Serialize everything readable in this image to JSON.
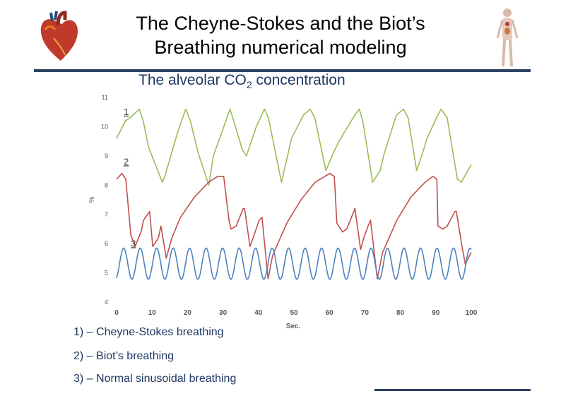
{
  "slide": {
    "title_line1": "The Cheyne-Stokes and the Biot’s",
    "title_line2": "Breathing numerical modeling",
    "subtitle_prefix": "The alveolar CO",
    "subtitle_sub": "2",
    "subtitle_suffix": " concentration",
    "legend": [
      "1) – Cheyne-Stokes breathing",
      "2) – Biot’s breathing",
      "3) – Normal sinusoidal breathing"
    ]
  },
  "icons": {
    "left": "heart-icon",
    "right": "human-anatomy-icon"
  },
  "chart_data": {
    "type": "line",
    "xlabel": "Sec.",
    "ylabel": "%",
    "xlim": [
      0,
      100
    ],
    "ylim": [
      4,
      11
    ],
    "xticks": [
      0,
      10,
      20,
      30,
      40,
      50,
      60,
      70,
      80,
      90,
      100
    ],
    "yticks": [
      4,
      5,
      6,
      7,
      8,
      9,
      10,
      11
    ],
    "grid": false,
    "curve_labels": [
      {
        "text": "1",
        "x": 2,
        "y": 10.4,
        "color": "#7a9a3e"
      },
      {
        "text": "2",
        "x": 2,
        "y": 8.7,
        "color": "#7a9a3e"
      },
      {
        "text": "3",
        "x": 4,
        "y": 5.9,
        "color": "#4a4a4a"
      }
    ],
    "series": [
      {
        "color": "#9bbb59",
        "x": [
          0,
          2.5,
          3.8,
          6.4,
          7.5,
          9,
          12.9,
          13.6,
          17.2,
          19.5,
          20.8,
          23,
          26,
          27.3,
          32,
          33,
          35.5,
          36.6,
          39.4,
          41.7,
          42.8,
          46.5,
          48.2,
          49.3,
          52.7,
          54.6,
          55.9,
          59,
          61.5,
          62.7,
          67.2,
          68.4,
          69.4,
          72.2,
          74.3,
          75.5,
          78.9,
          80.9,
          82.2,
          84.6,
          86.3,
          87.5,
          90.6,
          91.5,
          93.2,
          96.1,
          97.2,
          100
        ],
        "y": [
          9.6,
          10.2,
          10.3,
          10.6,
          10.2,
          9.3,
          8.1,
          8.3,
          9.8,
          10.6,
          10.2,
          9.1,
          8.0,
          9.0,
          10.6,
          10.2,
          9.2,
          9.0,
          10.0,
          10.6,
          10.3,
          8.1,
          9.0,
          9.6,
          10.4,
          10.6,
          10.3,
          8.5,
          9.2,
          9.5,
          10.4,
          10.6,
          10.2,
          8.1,
          8.5,
          9.1,
          10.4,
          10.6,
          10.3,
          8.5,
          9.1,
          9.6,
          10.4,
          10.6,
          10.3,
          8.2,
          8.1,
          8.7
        ]
      },
      {
        "color": "#c0504d",
        "x": [
          0,
          1.5,
          2.6,
          4,
          5.2,
          6.9,
          7.6,
          9.3,
          10.2,
          11.8,
          12.5,
          14,
          15.6,
          18,
          22,
          26,
          28.5,
          30.2,
          31.7,
          32.3,
          33.7,
          35.7,
          36.1,
          37.6,
          38.5,
          40.2,
          41,
          42.7,
          44,
          48,
          52,
          56,
          60.1,
          61.4,
          62.1,
          63.7,
          64.9,
          66.9,
          67.2,
          68.8,
          69.7,
          70.9,
          71.6,
          73.5,
          75,
          79,
          83,
          87,
          89.2,
          90.3,
          90.6,
          92,
          93.2,
          95.4,
          95.8,
          97.4,
          98.3,
          100
        ],
        "y": [
          8.2,
          8.4,
          8.2,
          6.3,
          5.9,
          6.4,
          6.8,
          7.1,
          5.9,
          6.2,
          6.6,
          5.5,
          6.2,
          6.9,
          7.6,
          8.1,
          8.3,
          8.3,
          6.8,
          6.5,
          6.6,
          7.2,
          7.2,
          5.9,
          6.2,
          6.8,
          6.9,
          4.8,
          5.6,
          6.7,
          7.5,
          8.1,
          8.4,
          8.3,
          6.7,
          6.4,
          6.5,
          7.1,
          7.2,
          5.8,
          6.2,
          6.6,
          6.8,
          4.8,
          5.7,
          6.8,
          7.6,
          8.1,
          8.3,
          8.2,
          6.6,
          6.5,
          6.6,
          7.1,
          7.1,
          5.9,
          5.3,
          5.7
        ]
      },
      {
        "color": "#4f81bd",
        "period": 4.65,
        "phase_peak_x": 2,
        "min": 4.78,
        "max": 5.85,
        "x_start": 0,
        "x_end": 100
      }
    ]
  }
}
